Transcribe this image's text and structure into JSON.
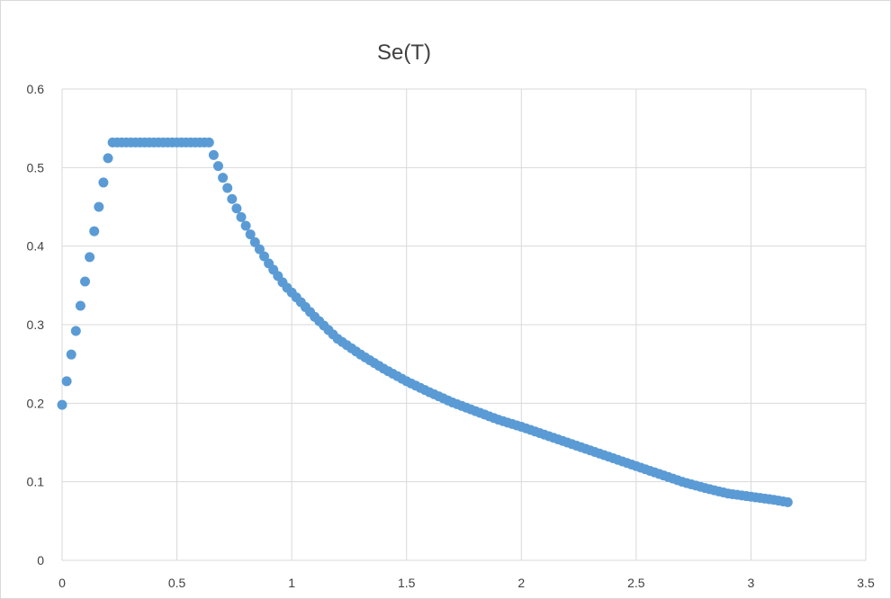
{
  "chart_data": {
    "type": "scatter",
    "title": "Se(T)",
    "xlabel": "",
    "ylabel": "",
    "xlim": [
      0,
      3.5
    ],
    "ylim": [
      0,
      0.6
    ],
    "x_ticks": [
      "0",
      "0.5",
      "1",
      "1.5",
      "2",
      "2.5",
      "3",
      "3.5"
    ],
    "y_ticks": [
      "0",
      "0.1",
      "0.2",
      "0.3",
      "0.4",
      "0.5",
      "0.6"
    ],
    "grid": true,
    "legend": "none",
    "marker_color": "#5b9bd5",
    "series": [
      {
        "parameters": {
          "T0": 0.0,
          "TB": 0.22,
          "TC": 0.65,
          "T_end": 3.16,
          "step": 0.02,
          "Se0": 0.198,
          "Se_plateau": 0.532
        },
        "x": [
          0,
          0.02,
          0.04,
          0.06,
          0.08,
          0.1,
          0.12,
          0.14,
          0.16,
          0.18,
          0.2,
          0.22,
          0.24,
          0.26,
          0.28,
          0.3,
          0.32,
          0.34,
          0.36,
          0.38,
          0.4,
          0.42,
          0.44,
          0.46,
          0.48,
          0.5,
          0.52,
          0.54,
          0.56,
          0.58,
          0.6,
          0.62,
          0.64,
          0.66,
          0.68,
          0.7,
          0.72,
          0.74,
          0.76,
          0.78,
          0.8,
          0.82,
          0.84,
          0.86,
          0.88,
          0.9,
          0.92,
          0.94,
          0.96,
          0.98,
          1.0,
          1.1,
          1.2,
          1.3,
          1.4,
          1.5,
          1.6,
          1.7,
          1.8,
          1.9,
          2.0,
          2.1,
          2.2,
          2.3,
          2.4,
          2.5,
          2.6,
          2.7,
          2.8,
          2.9,
          3.0,
          3.1,
          3.16
        ],
        "y": [
          0.198,
          0.228,
          0.262,
          0.292,
          0.324,
          0.355,
          0.386,
          0.419,
          0.45,
          0.481,
          0.512,
          0.532,
          0.532,
          0.532,
          0.532,
          0.532,
          0.532,
          0.532,
          0.532,
          0.532,
          0.532,
          0.532,
          0.532,
          0.532,
          0.532,
          0.532,
          0.532,
          0.532,
          0.532,
          0.532,
          0.532,
          0.532,
          0.532,
          0.516,
          0.502,
          0.487,
          0.474,
          0.46,
          0.448,
          0.437,
          0.426,
          0.415,
          0.405,
          0.396,
          0.387,
          0.378,
          0.37,
          0.362,
          0.354,
          0.347,
          0.341,
          0.31,
          0.282,
          0.262,
          0.244,
          0.228,
          0.214,
          0.201,
          0.19,
          0.179,
          0.17,
          0.16,
          0.15,
          0.14,
          0.13,
          0.12,
          0.11,
          0.1,
          0.092,
          0.085,
          0.081,
          0.077,
          0.074
        ]
      }
    ]
  }
}
